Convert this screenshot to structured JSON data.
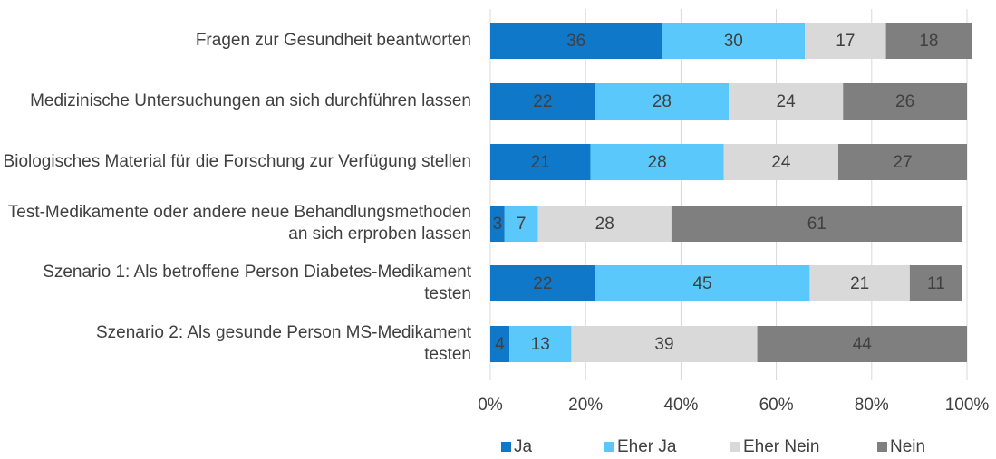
{
  "chart_data": {
    "type": "stacked_barh",
    "categories": [
      "Fragen zur Gesundheit beantworten",
      "Medizinische Untersuchungen an sich durchführen lassen",
      "Biologisches Material für die Forschung zur Verfügung stellen",
      "Test-Medikamente oder andere neue Behandlungsmethoden an sich erproben lassen",
      "Szenario 1: Als betroffene Person Diabetes-Medikament testen",
      "Szenario 2: Als gesunde Person MS-Medikament testen"
    ],
    "series": [
      {
        "name": "Ja",
        "color": "#0f78c8",
        "values": [
          36,
          22,
          21,
          3,
          22,
          4
        ]
      },
      {
        "name": "Eher Ja",
        "color": "#5ac8fa",
        "values": [
          30,
          28,
          28,
          7,
          45,
          13
        ]
      },
      {
        "name": "Eher Nein",
        "color": "#d9d9d9",
        "values": [
          17,
          24,
          24,
          28,
          21,
          39
        ]
      },
      {
        "name": "Nein",
        "color": "#7f7f7f",
        "values": [
          18,
          26,
          27,
          61,
          11,
          44
        ]
      }
    ],
    "xlim": [
      0,
      100
    ],
    "xticks": [
      {
        "value": 0,
        "label": "0%"
      },
      {
        "value": 20,
        "label": "20%"
      },
      {
        "value": 40,
        "label": "40%"
      },
      {
        "value": 60,
        "label": "60%"
      },
      {
        "value": 80,
        "label": "80%"
      },
      {
        "value": 100,
        "label": "100%"
      }
    ],
    "grid": true,
    "legend": "bottom"
  }
}
